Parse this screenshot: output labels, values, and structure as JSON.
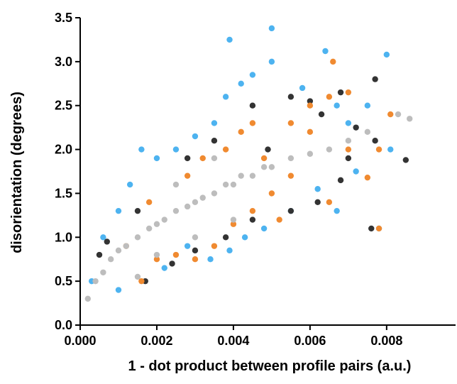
{
  "chart_data": {
    "type": "scatter",
    "x_label": "1 - dot product between profile pairs (a.u.)",
    "y_label": "disorientation (degrees)",
    "xlim": [
      0,
      0.0098
    ],
    "ylim": [
      0,
      3.5
    ],
    "xticks": [
      {
        "value": 0,
        "label": "0.000"
      },
      {
        "value": 0.002,
        "label": "0.002"
      },
      {
        "value": 0.004,
        "label": "0.004"
      },
      {
        "value": 0.006,
        "label": "0.006"
      },
      {
        "value": 0.008,
        "label": "0.008"
      }
    ],
    "yticks": [
      {
        "value": 0,
        "label": "0.0"
      },
      0.5,
      {
        "value": 1,
        "label": "1.0"
      },
      1.5,
      {
        "value": 2,
        "label": "2.0"
      },
      2.5,
      {
        "value": 3,
        "label": "3.0"
      },
      3.5
    ],
    "series": [
      {
        "color": "#4db3f0",
        "x": [
          0.0003,
          0.0006,
          0.001,
          0.0013,
          0.0016,
          0.002,
          0.0025,
          0.003,
          0.0035,
          0.0038,
          0.0039,
          0.0042,
          0.0045,
          0.005,
          0.005,
          0.0058,
          0.0064,
          0.0067,
          0.0075,
          0.008,
          0.0081,
          0.0078,
          0.0072,
          0.0067,
          0.0062,
          0.0055,
          0.0048,
          0.0043,
          0.0039,
          0.0034,
          0.0028,
          0.0022,
          0.001,
          0.007
        ],
        "values": [
          0.5,
          1.0,
          1.3,
          1.6,
          2.0,
          1.9,
          2.0,
          2.15,
          2.3,
          2.6,
          3.25,
          2.75,
          2.85,
          3.38,
          3.0,
          2.7,
          3.12,
          2.5,
          2.5,
          3.08,
          2.0,
          1.1,
          1.75,
          1.3,
          1.55,
          1.3,
          1.1,
          1.0,
          0.85,
          0.75,
          0.9,
          0.65,
          0.4,
          2.3
        ]
      },
      {
        "color": "#333333",
        "x": [
          0.0005,
          0.0007,
          0.0015,
          0.0028,
          0.0035,
          0.0045,
          0.0055,
          0.006,
          0.0063,
          0.0068,
          0.0077,
          0.0077,
          0.0085,
          0.0076,
          0.0068,
          0.0062,
          0.0055,
          0.0045,
          0.0038,
          0.003,
          0.0024,
          0.0017,
          0.007,
          0.0049,
          0.0072
        ],
        "values": [
          0.8,
          0.95,
          1.3,
          1.9,
          2.1,
          2.5,
          2.6,
          2.55,
          2.4,
          2.65,
          2.8,
          2.1,
          1.88,
          1.1,
          1.65,
          1.4,
          1.3,
          1.2,
          1.0,
          0.85,
          0.7,
          0.5,
          1.9,
          2.0,
          2.25
        ]
      },
      {
        "color": "#f08a30",
        "x": [
          0.0016,
          0.002,
          0.0025,
          0.003,
          0.0035,
          0.004,
          0.0045,
          0.005,
          0.0055,
          0.006,
          0.0065,
          0.0066,
          0.007,
          0.0075,
          0.0078,
          0.0081,
          0.0078,
          0.0042,
          0.0038,
          0.0045,
          0.0055,
          0.006,
          0.0012,
          0.0018,
          0.0028,
          0.0032,
          0.0048,
          0.0065,
          0.007,
          0.0052
        ],
        "values": [
          0.5,
          0.75,
          0.8,
          0.75,
          0.9,
          1.15,
          1.3,
          1.5,
          1.7,
          2.2,
          2.6,
          3.0,
          2.65,
          1.68,
          2.0,
          2.4,
          1.1,
          2.2,
          2.0,
          2.3,
          2.3,
          2.5,
          0.9,
          1.4,
          1.7,
          1.9,
          1.9,
          1.4,
          2.0,
          1.2
        ]
      },
      {
        "color": "#bdbdbd",
        "x": [
          0.0002,
          0.0004,
          0.0006,
          0.0008,
          0.001,
          0.0012,
          0.0015,
          0.0018,
          0.002,
          0.0022,
          0.0025,
          0.0028,
          0.003,
          0.0032,
          0.0035,
          0.0038,
          0.004,
          0.0042,
          0.0045,
          0.0048,
          0.005,
          0.0055,
          0.006,
          0.0065,
          0.007,
          0.0075,
          0.0083,
          0.0086,
          0.0015,
          0.002,
          0.003,
          0.004,
          0.0025,
          0.0035
        ],
        "values": [
          0.3,
          0.5,
          0.6,
          0.75,
          0.85,
          0.9,
          1.0,
          1.1,
          1.15,
          1.2,
          1.3,
          1.35,
          1.4,
          1.45,
          1.5,
          1.6,
          1.6,
          1.7,
          1.7,
          1.8,
          1.8,
          1.9,
          1.95,
          2.0,
          2.1,
          2.2,
          2.4,
          2.35,
          0.55,
          0.8,
          1.0,
          1.2,
          1.6,
          1.9
        ]
      }
    ]
  }
}
